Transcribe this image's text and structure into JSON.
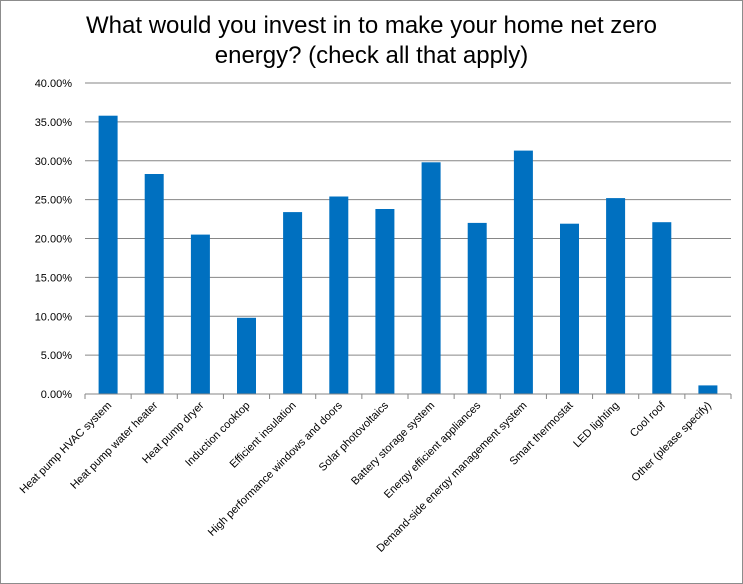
{
  "chart_data": {
    "type": "bar",
    "title_lines": [
      "What would you invest in to make your home net zero",
      "energy? (check all that apply)"
    ],
    "categories": [
      "Heat pump HVAC system",
      "Heat pump water heater",
      "Heat pump dryer",
      "Induction cooktop",
      "Efficient insulation",
      "High performance windows and doors",
      "Solar photovoltaics",
      "Battery storage system",
      "Energy efficient appliances",
      "Demand-side energy management system",
      "Smart thermostat",
      "LED lighting",
      "Cool roof",
      "Other (please specify)"
    ],
    "values": [
      35.8,
      28.3,
      20.5,
      9.8,
      23.4,
      25.4,
      23.8,
      29.8,
      22.0,
      31.3,
      21.9,
      25.2,
      22.1,
      1.1
    ],
    "ylim": [
      0,
      40
    ],
    "yticks": [
      "0.00%",
      "5.00%",
      "10.00%",
      "15.00%",
      "20.00%",
      "25.00%",
      "30.00%",
      "35.00%",
      "40.00%"
    ],
    "xlabel": "",
    "ylabel": "",
    "grid": true,
    "legend": "none",
    "bar_color": "#0070C0",
    "grid_color": "#868686"
  }
}
